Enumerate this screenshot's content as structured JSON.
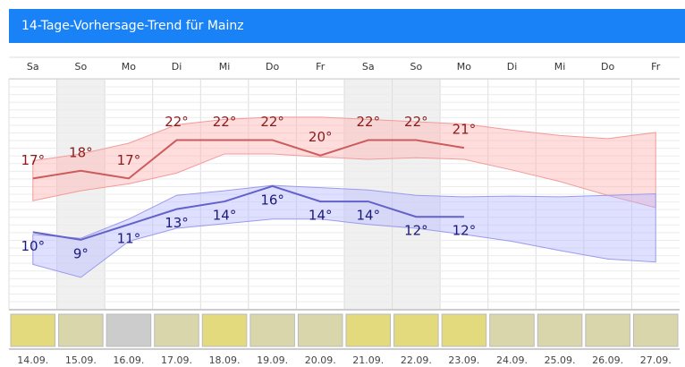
{
  "chart_data": {
    "type": "line",
    "title": "14-Tage-Vorhersage-Trend für Mainz",
    "categories": [
      "Sa",
      "So",
      "Mo",
      "Di",
      "Mi",
      "Do",
      "Fr",
      "Sa",
      "So",
      "Mo",
      "Di",
      "Mi",
      "Do",
      "Fr"
    ],
    "dates": [
      "14.09.",
      "15.09.",
      "16.09.",
      "17.09.",
      "18.09.",
      "19.09.",
      "20.09.",
      "21.09.",
      "22.09.",
      "23.09.",
      "24.09.",
      "25.09.",
      "26.09.",
      "27.09."
    ],
    "shaded": [
      false,
      true,
      false,
      false,
      false,
      false,
      false,
      true,
      true,
      false,
      false,
      false,
      false,
      false
    ],
    "day_colors": [
      "#e3da7e",
      "#d8d6aa",
      "#cccccc",
      "#d8d6aa",
      "#e3da7e",
      "#d8d6aa",
      "#d8d6aa",
      "#e3da7e",
      "#e3da7e",
      "#e3da7e",
      "#d8d6aa",
      "#d8d6aa",
      "#d8d6aa",
      "#d8d6aa"
    ],
    "ylim": [
      0,
      30
    ],
    "series": [
      {
        "color": "#cc5c5c",
        "label_color": "#8b1a1a",
        "band_color": "#ffb3b3",
        "band_stroke": "#f29a9a",
        "label_position": "above",
        "values": [
          17,
          18,
          17,
          22,
          22,
          22,
          20,
          22,
          22,
          21,
          null,
          null,
          null,
          null
        ],
        "value_labels": [
          "17°",
          "18°",
          "17°",
          "22°",
          "22°",
          "22°",
          "20°",
          "22°",
          "22°",
          "21°",
          null,
          null,
          null,
          null
        ],
        "upper": [
          19.3,
          20.2,
          21.6,
          24,
          24.7,
          25,
          25,
          24.7,
          24.4,
          24.1,
          23.3,
          22.6,
          22.2,
          23
        ],
        "lower": [
          14.1,
          15.4,
          16.3,
          17.7,
          20.2,
          20.2,
          19.8,
          19.5,
          19.7,
          19.5,
          18.1,
          16.6,
          14.8,
          13.2
        ]
      },
      {
        "color": "#6262c8",
        "label_color": "#1a1a7a",
        "band_color": "#b8b8ff",
        "band_stroke": "#9a9aee",
        "label_position": "below",
        "values": [
          10,
          9,
          11,
          13,
          14,
          16,
          14,
          14,
          12,
          12,
          null,
          null,
          null,
          null
        ],
        "value_labels": [
          "10°",
          "9°",
          "11°",
          "13°",
          "14°",
          "16°",
          "14°",
          "14°",
          "12°",
          "12°",
          null,
          null,
          null,
          null
        ],
        "upper": [
          9.7,
          9.2,
          11.7,
          14.8,
          15.4,
          16.1,
          15.8,
          15.5,
          14.8,
          14.6,
          14.7,
          14.6,
          14.8,
          15
        ],
        "lower": [
          5.8,
          4.1,
          8.8,
          10.5,
          11.1,
          11.7,
          11.7,
          11,
          10.5,
          9.7,
          8.8,
          7.6,
          6.5,
          6.1
        ]
      }
    ]
  }
}
